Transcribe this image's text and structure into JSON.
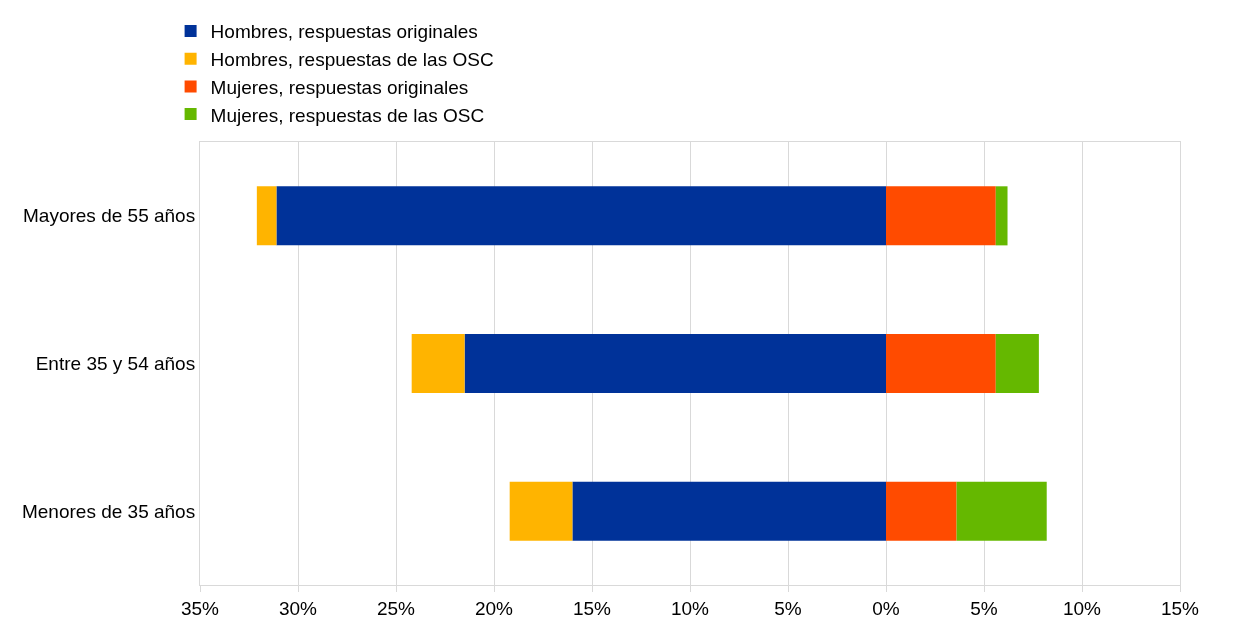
{
  "chart_data": {
    "type": "bar",
    "orientation": "horizontal",
    "stacked": true,
    "categories": [
      "Mayores de 55 años",
      "Entre 35 y 54 años",
      "Menores de 35 años"
    ],
    "series": [
      {
        "name": "Hombres, respuestas originales",
        "color": "#003299",
        "values": [
          -31.1,
          -21.5,
          -16.0
        ]
      },
      {
        "name": "Hombres, respuestas de las OSC",
        "color": "#ffb400",
        "values": [
          -1.0,
          -2.7,
          -3.2
        ]
      },
      {
        "name": "Mujeres, respuestas originales",
        "color": "#ff4b00",
        "values": [
          5.6,
          5.6,
          3.6
        ]
      },
      {
        "name": "Mujeres, respuestas de las OSC",
        "color": "#65b800",
        "values": [
          0.6,
          2.2,
          4.6
        ]
      }
    ],
    "xlim": [
      -35,
      15
    ],
    "xticks": [
      {
        "value": -35,
        "label": "35%"
      },
      {
        "value": -30,
        "label": "30%"
      },
      {
        "value": -25,
        "label": "25%"
      },
      {
        "value": -20,
        "label": "20%"
      },
      {
        "value": -15,
        "label": "15%"
      },
      {
        "value": -10,
        "label": "10%"
      },
      {
        "value": -5,
        "label": "5%"
      },
      {
        "value": 0,
        "label": "0%"
      },
      {
        "value": 5,
        "label": "5%"
      },
      {
        "value": 10,
        "label": "10%"
      },
      {
        "value": 15,
        "label": "15%"
      }
    ],
    "grid": "x",
    "legend": "top left"
  }
}
